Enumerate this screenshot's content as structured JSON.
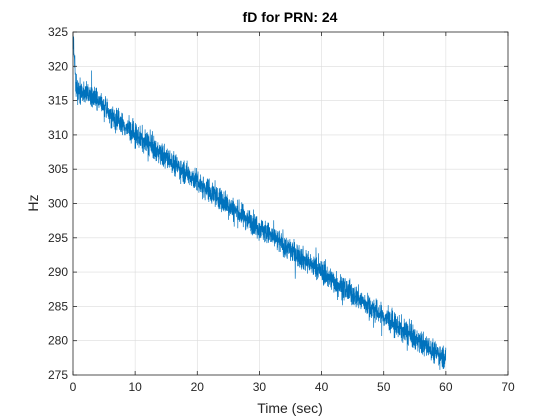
{
  "chart_data": {
    "type": "line",
    "title": "fD for PRN: 24",
    "xlabel": "Time (sec)",
    "ylabel": "Hz",
    "xlim": [
      0,
      70
    ],
    "ylim": [
      275,
      325
    ],
    "xticks": [
      0,
      10,
      20,
      30,
      40,
      50,
      60,
      70
    ],
    "yticks": [
      275,
      280,
      285,
      290,
      295,
      300,
      305,
      310,
      315,
      320,
      325
    ],
    "grid": true,
    "line_color": "#0072BD",
    "series": [
      {
        "x": [
          0,
          0.5,
          1,
          2,
          3,
          4,
          5,
          6,
          8,
          10,
          12,
          14,
          16,
          18,
          20,
          22,
          24,
          26,
          28,
          30,
          32,
          34,
          36,
          38,
          40,
          42,
          44,
          46,
          48,
          50,
          52,
          54,
          56,
          58,
          60
        ],
        "values": [
          324.5,
          316.5,
          316.3,
          316.0,
          315.7,
          315.0,
          314.0,
          313.0,
          311.5,
          310.0,
          308.7,
          307.3,
          306.0,
          304.6,
          303.3,
          301.8,
          300.5,
          299.0,
          297.8,
          296.5,
          295.2,
          293.9,
          292.6,
          291.3,
          290.0,
          288.7,
          287.4,
          286.1,
          284.8,
          283.5,
          282.2,
          280.9,
          279.7,
          278.5,
          277.5
        ]
      }
    ],
    "noise_amplitude_hz": 1.2
  }
}
